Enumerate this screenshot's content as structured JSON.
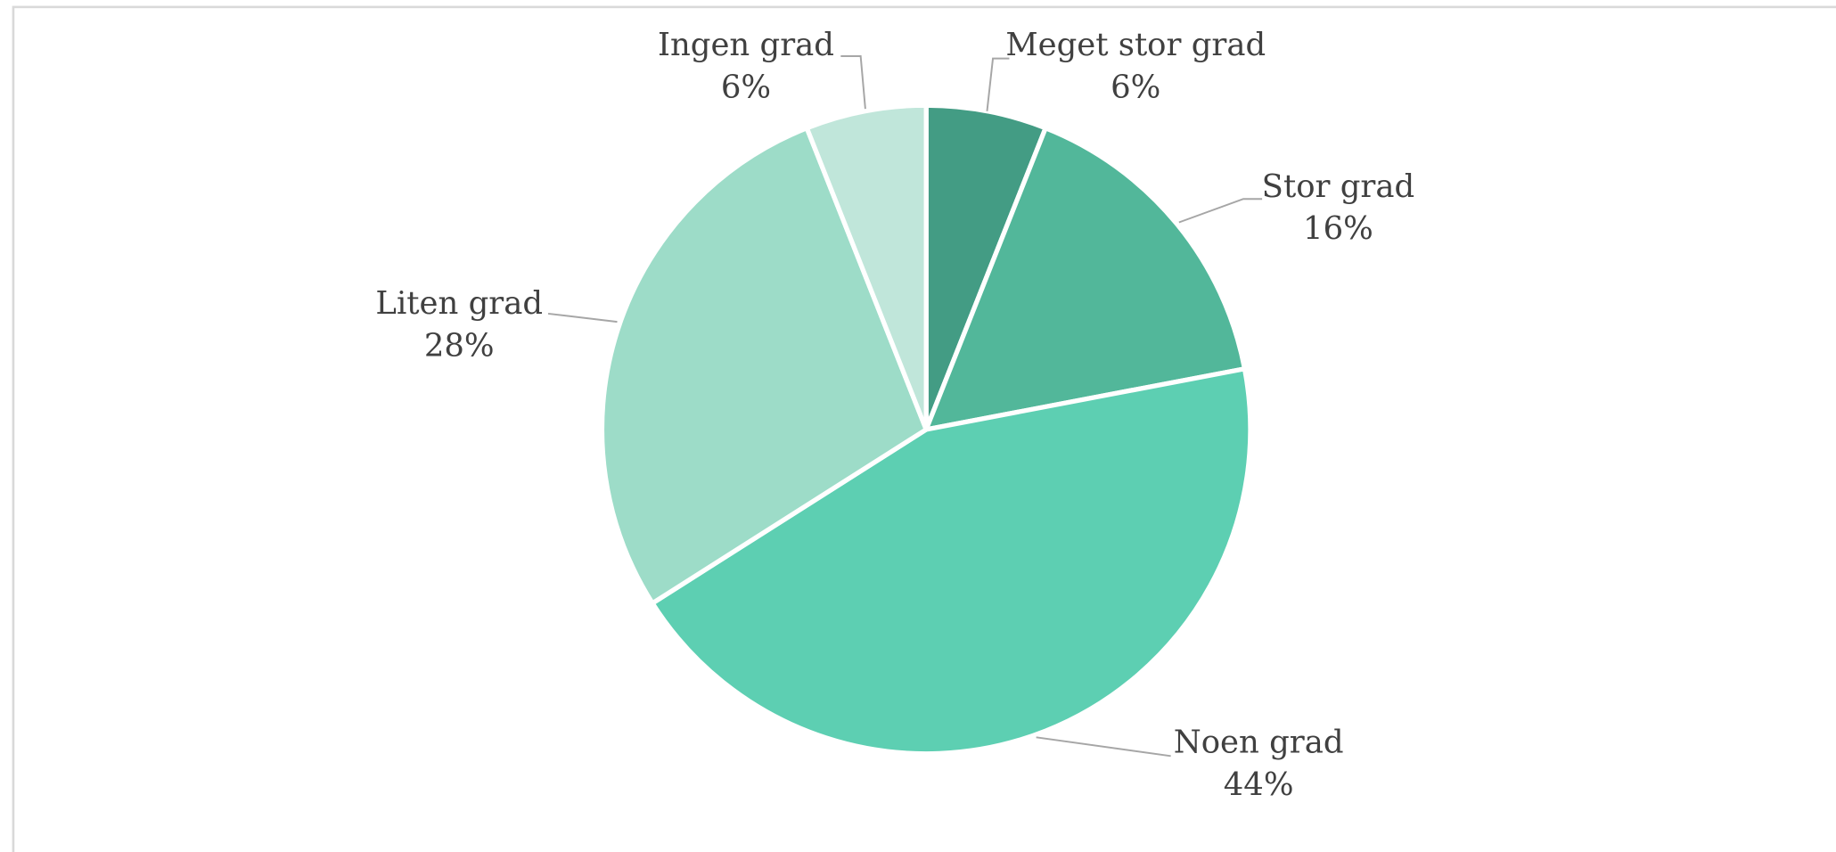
{
  "chart_data": {
    "type": "pie",
    "categories": [
      "Meget stor grad",
      "Stor grad",
      "Noen grad",
      "Liten grad",
      "Ingen grad"
    ],
    "values": [
      6,
      16,
      44,
      28,
      6
    ],
    "value_labels": [
      "6%",
      "16%",
      "44%",
      "28%",
      "6%"
    ],
    "colors": [
      "#439c84",
      "#52b79a",
      "#5dcfb2",
      "#9ddcc8",
      "#c0e6da"
    ]
  }
}
